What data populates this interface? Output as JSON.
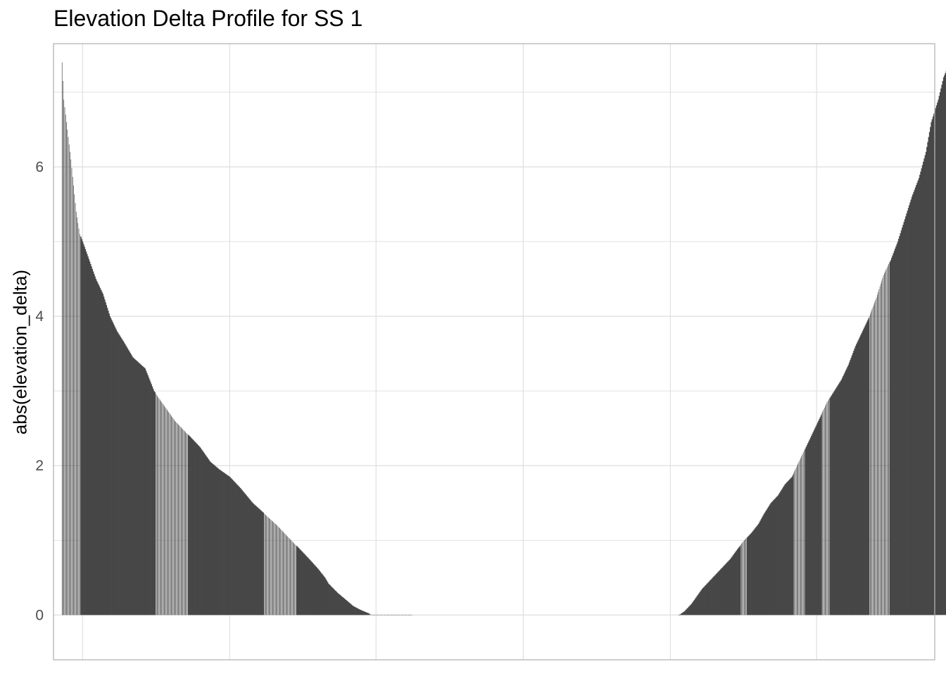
{
  "chart_data": {
    "type": "bar",
    "title": "Elevation Delta Profile for SS 1",
    "xlabel": "",
    "ylabel": "abs(elevation_delta)",
    "ylim": [
      -0.6,
      7.65
    ],
    "xlim": [
      0,
      1000
    ],
    "y_ticks": [
      0,
      2,
      4,
      6
    ],
    "x_gridlines": [
      33,
      200,
      366,
      533,
      700,
      866
    ],
    "grid": true,
    "bar_color": "#474747",
    "grid_color": "#dedede",
    "panel_border_color": "#b3b3b3",
    "segments": [
      {
        "x_start": 10,
        "x_end": 407,
        "profile": [
          [
            10,
            7.4
          ],
          [
            12,
            6.9
          ],
          [
            16,
            6.5
          ],
          [
            20,
            6.1
          ],
          [
            26,
            5.4
          ],
          [
            30,
            5.1
          ],
          [
            36,
            4.9
          ],
          [
            42,
            4.7
          ],
          [
            48,
            4.5
          ],
          [
            56,
            4.3
          ],
          [
            64,
            4.0
          ],
          [
            72,
            3.8
          ],
          [
            80,
            3.65
          ],
          [
            90,
            3.45
          ],
          [
            104,
            3.3
          ],
          [
            114,
            3.0
          ],
          [
            126,
            2.8
          ],
          [
            138,
            2.6
          ],
          [
            150,
            2.45
          ],
          [
            166,
            2.25
          ],
          [
            178,
            2.05
          ],
          [
            188,
            1.95
          ],
          [
            200,
            1.85
          ],
          [
            212,
            1.7
          ],
          [
            226,
            1.5
          ],
          [
            240,
            1.35
          ],
          [
            254,
            1.2
          ],
          [
            266,
            1.05
          ],
          [
            278,
            0.9
          ],
          [
            290,
            0.75
          ],
          [
            300,
            0.62
          ],
          [
            308,
            0.5
          ],
          [
            312,
            0.42
          ],
          [
            322,
            0.3
          ],
          [
            332,
            0.2
          ],
          [
            340,
            0.12
          ],
          [
            348,
            0.07
          ],
          [
            356,
            0.03
          ],
          [
            362,
            0.0
          ]
        ],
        "stripe_ranges": [
          [
            10,
            30
          ],
          [
            116,
            152
          ],
          [
            239,
            275
          ],
          [
            359,
            407
          ]
        ]
      },
      {
        "x_start": 710,
        "x_end": 1017,
        "profile": [
          [
            710,
            0.0
          ],
          [
            716,
            0.05
          ],
          [
            724,
            0.15
          ],
          [
            730,
            0.25
          ],
          [
            736,
            0.35
          ],
          [
            744,
            0.45
          ],
          [
            752,
            0.55
          ],
          [
            760,
            0.65
          ],
          [
            768,
            0.75
          ],
          [
            776,
            0.88
          ],
          [
            784,
            1.0
          ],
          [
            792,
            1.1
          ],
          [
            800,
            1.22
          ],
          [
            806,
            1.35
          ],
          [
            814,
            1.5
          ],
          [
            822,
            1.6
          ],
          [
            830,
            1.75
          ],
          [
            838,
            1.85
          ],
          [
            846,
            2.05
          ],
          [
            854,
            2.25
          ],
          [
            862,
            2.45
          ],
          [
            870,
            2.65
          ],
          [
            878,
            2.85
          ],
          [
            886,
            3.0
          ],
          [
            894,
            3.15
          ],
          [
            902,
            3.35
          ],
          [
            910,
            3.6
          ],
          [
            918,
            3.8
          ],
          [
            926,
            4.0
          ],
          [
            934,
            4.25
          ],
          [
            942,
            4.55
          ],
          [
            950,
            4.75
          ],
          [
            958,
            5.0
          ],
          [
            966,
            5.3
          ],
          [
            974,
            5.6
          ],
          [
            982,
            5.85
          ],
          [
            990,
            6.2
          ],
          [
            996,
            6.6
          ],
          [
            1004,
            6.9
          ],
          [
            1010,
            7.2
          ],
          [
            1017,
            7.4
          ]
        ],
        "stripe_ranges": [
          [
            780,
            786
          ],
          [
            840,
            852
          ],
          [
            872,
            880
          ],
          [
            926,
            948
          ]
        ]
      }
    ]
  }
}
